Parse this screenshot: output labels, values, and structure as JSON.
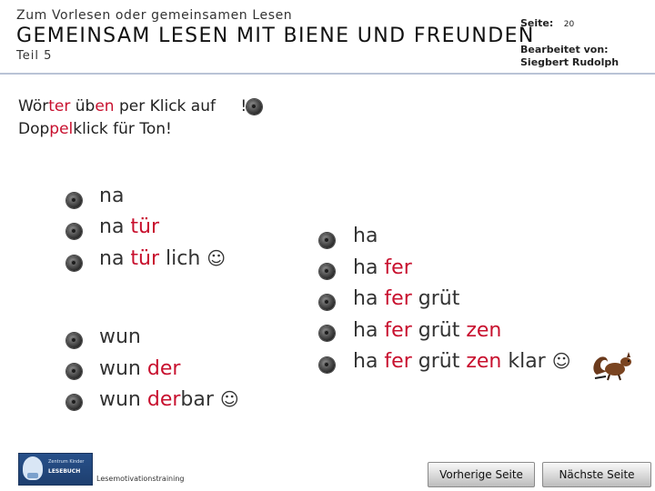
{
  "header": {
    "subtitle": "Zum Vorlesen oder gemeinsamen Lesen",
    "title": "GEMEINSAM LESEN MIT BIENE UND FREUNDEN",
    "part": "Teil 5",
    "page_label": "Seite:",
    "page_number": "20",
    "edited_label": "Bearbeitet von:",
    "editor": "Siegbert Rudolph"
  },
  "instructions": {
    "line1_a": "Wör",
    "line1_b": "ter",
    "line1_c": " üb",
    "line1_d": "en",
    "line1_e": " per Klick auf ",
    "line1_f": "!",
    "line2_a": "Dop",
    "line2_b": "pel",
    "line2_c": "klick für Ton!"
  },
  "groups": {
    "natur": {
      "rows": [
        {
          "p1": "na",
          "p2": "",
          "p3": "",
          "smile": ""
        },
        {
          "p1": "na ",
          "p2": "tür",
          "p3": "",
          "smile": ""
        },
        {
          "p1": "na ",
          "p2": "tür",
          "p3": " lich ",
          "smile": "☺"
        }
      ]
    },
    "wunder": {
      "rows": [
        {
          "p1": "wun",
          "p2": "",
          "p3": "",
          "smile": ""
        },
        {
          "p1": "wun ",
          "p2": "der",
          "p3": "",
          "smile": ""
        },
        {
          "p1": "wun ",
          "p2": "der",
          "p3": "bar ",
          "smile": "☺"
        }
      ]
    },
    "haferkorn": {
      "rows": [
        {
          "p1": "ha",
          "p2": "",
          "p3": "",
          "p4": "",
          "p5": "",
          "smile": ""
        },
        {
          "p1": "ha ",
          "p2": "fer",
          "p3": "",
          "p4": "",
          "p5": "",
          "smile": ""
        },
        {
          "p1": "ha ",
          "p2": "fer",
          "p3": " grüt",
          "p4": "",
          "p5": "",
          "smile": ""
        },
        {
          "p1": "ha ",
          "p2": "fer",
          "p3": " grüt",
          "p4": " zen",
          "p5": "",
          "smile": ""
        },
        {
          "p1": "ha ",
          "p2": "fer",
          "p3": " grüt",
          "p4": " zen",
          "p5": " klar ",
          "smile": "☺"
        }
      ]
    }
  },
  "footer": {
    "logo_line1": "Zentrum Kinder",
    "logo_line2": "LESEBUCH",
    "program": "Lesemotivationstraining",
    "prev_label": "Vorherige Seite",
    "next_label": "Nächste Seite"
  },
  "icons": {
    "speaker": "speaker-button-icon",
    "squirrel": "squirrel-icon"
  },
  "colors": {
    "accent_red": "#c8102e",
    "header_rule": "#b9c3d6"
  }
}
